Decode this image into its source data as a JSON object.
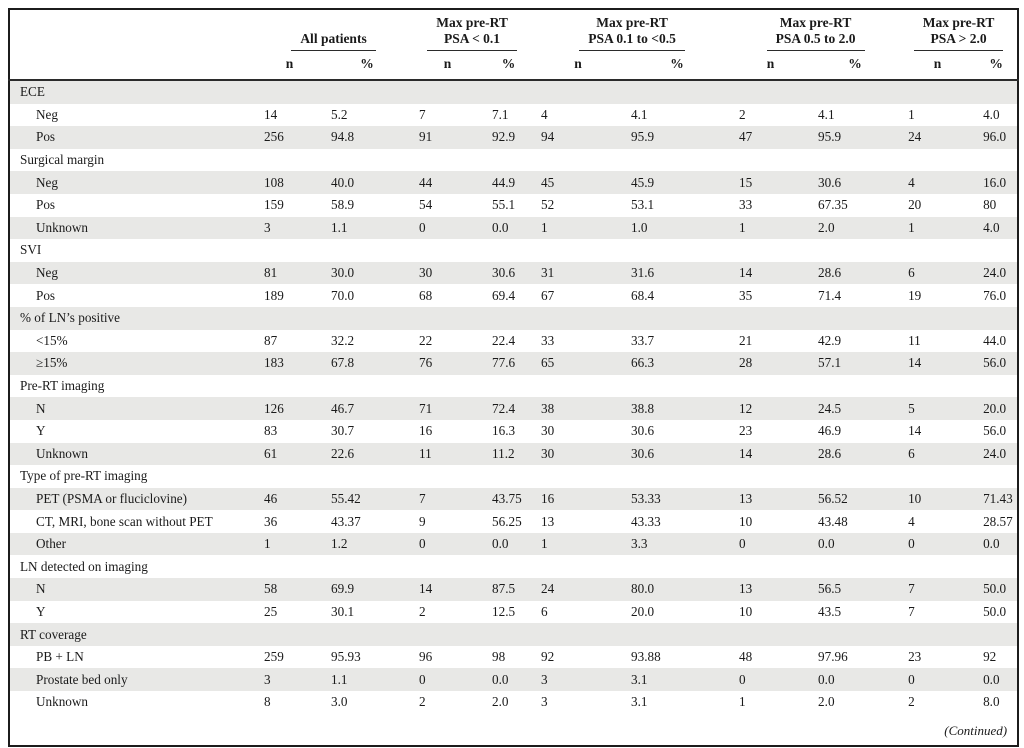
{
  "table": {
    "column_groups": [
      {
        "lines": [
          "All patients"
        ]
      },
      {
        "lines": [
          "Max pre-RT",
          "PSA < 0.1"
        ]
      },
      {
        "lines": [
          "Max pre-RT",
          "PSA 0.1 to <0.5"
        ]
      },
      {
        "lines": [
          "Max pre-RT",
          "PSA 0.5 to 2.0"
        ]
      },
      {
        "lines": [
          "Max pre-RT",
          "PSA > 2.0"
        ]
      }
    ],
    "sub_headers": [
      "n",
      "%"
    ],
    "sections": [
      {
        "label": "ECE",
        "rows": [
          {
            "label": "Neg",
            "values": [
              "14",
              "5.2",
              "7",
              "7.1",
              "4",
              "4.1",
              "2",
              "4.1",
              "1",
              "4.0"
            ]
          },
          {
            "label": "Pos",
            "values": [
              "256",
              "94.8",
              "91",
              "92.9",
              "94",
              "95.9",
              "47",
              "95.9",
              "24",
              "96.0"
            ]
          }
        ]
      },
      {
        "label": "Surgical margin",
        "rows": [
          {
            "label": "Neg",
            "values": [
              "108",
              "40.0",
              "44",
              "44.9",
              "45",
              "45.9",
              "15",
              "30.6",
              "4",
              "16.0"
            ]
          },
          {
            "label": "Pos",
            "values": [
              "159",
              "58.9",
              "54",
              "55.1",
              "52",
              "53.1",
              "33",
              "67.35",
              "20",
              "80"
            ]
          },
          {
            "label": "Unknown",
            "values": [
              "3",
              "1.1",
              "0",
              "0.0",
              "1",
              "1.0",
              "1",
              "2.0",
              "1",
              "4.0"
            ]
          }
        ]
      },
      {
        "label": "SVI",
        "rows": [
          {
            "label": "Neg",
            "values": [
              "81",
              "30.0",
              "30",
              "30.6",
              "31",
              "31.6",
              "14",
              "28.6",
              "6",
              "24.0"
            ]
          },
          {
            "label": "Pos",
            "values": [
              "189",
              "70.0",
              "68",
              "69.4",
              "67",
              "68.4",
              "35",
              "71.4",
              "19",
              "76.0"
            ]
          }
        ]
      },
      {
        "label": "% of LN’s positive",
        "rows": [
          {
            "label": "<15%",
            "values": [
              "87",
              "32.2",
              "22",
              "22.4",
              "33",
              "33.7",
              "21",
              "42.9",
              "11",
              "44.0"
            ]
          },
          {
            "label": "≥15%",
            "values": [
              "183",
              "67.8",
              "76",
              "77.6",
              "65",
              "66.3",
              "28",
              "57.1",
              "14",
              "56.0"
            ]
          }
        ]
      },
      {
        "label": "Pre-RT imaging",
        "rows": [
          {
            "label": "N",
            "values": [
              "126",
              "46.7",
              "71",
              "72.4",
              "38",
              "38.8",
              "12",
              "24.5",
              "5",
              "20.0"
            ]
          },
          {
            "label": "Y",
            "values": [
              "83",
              "30.7",
              "16",
              "16.3",
              "30",
              "30.6",
              "23",
              "46.9",
              "14",
              "56.0"
            ]
          },
          {
            "label": "Unknown",
            "values": [
              "61",
              "22.6",
              "11",
              "11.2",
              "30",
              "30.6",
              "14",
              "28.6",
              "6",
              "24.0"
            ]
          }
        ]
      },
      {
        "label": "Type of pre-RT imaging",
        "rows": [
          {
            "label": "PET (PSMA or fluciclovine)",
            "values": [
              "46",
              "55.42",
              "7",
              "43.75",
              "16",
              "53.33",
              "13",
              "56.52",
              "10",
              "71.43"
            ]
          },
          {
            "label": "CT, MRI, bone scan without PET",
            "values": [
              "36",
              "43.37",
              "9",
              "56.25",
              "13",
              "43.33",
              "10",
              "43.48",
              "4",
              "28.57"
            ]
          },
          {
            "label": "Other",
            "values": [
              "1",
              "1.2",
              "0",
              "0.0",
              "1",
              "3.3",
              "0",
              "0.0",
              "0",
              "0.0"
            ]
          }
        ]
      },
      {
        "label": "LN detected on imaging",
        "rows": [
          {
            "label": "N",
            "values": [
              "58",
              "69.9",
              "14",
              "87.5",
              "24",
              "80.0",
              "13",
              "56.5",
              "7",
              "50.0"
            ]
          },
          {
            "label": "Y",
            "values": [
              "25",
              "30.1",
              "2",
              "12.5",
              "6",
              "20.0",
              "10",
              "43.5",
              "7",
              "50.0"
            ]
          }
        ]
      },
      {
        "label": "RT coverage",
        "rows": [
          {
            "label": "PB + LN",
            "values": [
              "259",
              "95.93",
              "96",
              "98",
              "92",
              "93.88",
              "48",
              "97.96",
              "23",
              "92"
            ]
          },
          {
            "label": "Prostate bed only",
            "values": [
              "3",
              "1.1",
              "0",
              "0.0",
              "3",
              "3.1",
              "0",
              "0.0",
              "0",
              "0.0"
            ]
          },
          {
            "label": "Unknown",
            "values": [
              "8",
              "3.0",
              "2",
              "2.0",
              "3",
              "3.1",
              "1",
              "2.0",
              "2",
              "8.0"
            ]
          }
        ]
      }
    ],
    "continued_note": "(Continued)"
  },
  "colors": {
    "stripe": "#e8e8e6",
    "border": "#1c1c1c",
    "text": "#1a1a1a",
    "background": "#ffffff"
  }
}
